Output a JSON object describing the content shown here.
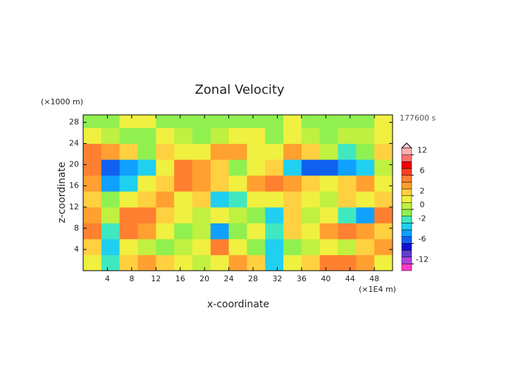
{
  "chart_data": {
    "type": "heatmap",
    "title": "Zonal Velocity",
    "y_unit": "(×1000 m)",
    "x_unit": "(×1E4 m)",
    "time_label": "177600 s",
    "xlabel": "x-coordinate",
    "ylabel": "z-coordinate",
    "xlim": [
      0,
      51
    ],
    "ylim": [
      0,
      29.4
    ],
    "xticks": [
      4,
      8,
      12,
      16,
      20,
      24,
      28,
      32,
      36,
      40,
      44,
      48
    ],
    "yticks": [
      4,
      8,
      12,
      16,
      20,
      24,
      28
    ],
    "x": [
      1.5,
      4.5,
      7.5,
      10.5,
      13.5,
      16.5,
      19.5,
      22.5,
      25.5,
      28.5,
      31.5,
      34.5,
      37.5,
      40.5,
      43.5,
      46.5,
      49.5
    ],
    "y": [
      1.5,
      4.5,
      7.5,
      10.5,
      13.5,
      16.5,
      19.5,
      22.5,
      25.5,
      28.5
    ],
    "values": [
      [
        1,
        -2,
        2,
        3,
        2,
        1,
        0,
        1,
        3,
        2,
        -3,
        1,
        2,
        4,
        4,
        3,
        1
      ],
      [
        2,
        -3,
        1,
        0,
        -1,
        0,
        1,
        4,
        1,
        -1,
        -3,
        -1,
        0,
        1,
        0,
        2,
        3
      ],
      [
        4,
        -2,
        4,
        3,
        1,
        -1,
        0,
        -4,
        -1,
        1,
        -2,
        2,
        1,
        3,
        4,
        3,
        2
      ],
      [
        3,
        0,
        4,
        4,
        2,
        1,
        0,
        1,
        0,
        -1,
        -3,
        2,
        0,
        1,
        -2,
        -4,
        4
      ],
      [
        2,
        -1,
        1,
        2,
        3,
        1,
        2,
        -3,
        -2,
        1,
        1,
        2,
        1,
        0,
        2,
        1,
        2
      ],
      [
        3,
        -4,
        -3,
        1,
        2,
        4,
        3,
        2,
        1,
        3,
        4,
        3,
        2,
        1,
        2,
        3,
        1
      ],
      [
        4,
        -5,
        -4,
        -3,
        1,
        4,
        3,
        2,
        -1,
        1,
        2,
        -3,
        -6,
        -5,
        -4,
        -3,
        0
      ],
      [
        4,
        3,
        2,
        -1,
        2,
        1,
        1,
        3,
        3,
        1,
        1,
        3,
        2,
        0,
        -2,
        -1,
        2
      ],
      [
        1,
        0,
        -1,
        -1,
        1,
        0,
        -1,
        0,
        1,
        1,
        -1,
        1,
        0,
        -1,
        0,
        0,
        1
      ],
      [
        -1,
        -1,
        1,
        1,
        -1,
        -1,
        -1,
        -1,
        -1,
        -1,
        -1,
        1,
        -1,
        -1,
        -1,
        -1,
        1
      ]
    ],
    "levels": [
      -14,
      -12,
      -10,
      -8,
      -6,
      -4,
      -3,
      -2,
      -1,
      0,
      1,
      2,
      3,
      4,
      6,
      8,
      10,
      12,
      14
    ],
    "colors": [
      "#ff3cc8",
      "#b040e0",
      "#6040d0",
      "#1010d0",
      "#1060f0",
      "#10a0ff",
      "#20d0f0",
      "#40e8c0",
      "#90f050",
      "#c0f040",
      "#f0f040",
      "#ffd040",
      "#ffa030",
      "#ff8030",
      "#ff4020",
      "#f00000",
      "#ff7070",
      "#ffb0b0"
    ],
    "colorbar_ticks": [
      -12,
      -6,
      -2,
      0,
      2,
      6,
      12
    ]
  }
}
